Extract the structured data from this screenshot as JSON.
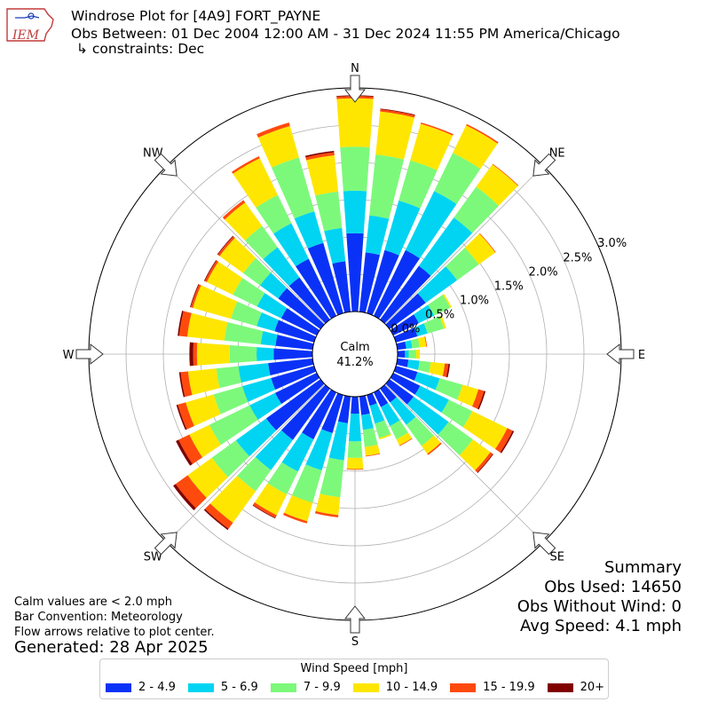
{
  "header": {
    "title": "Windrose Plot for [4A9] FORT_PAYNE",
    "obs_between": "Obs Between: 01 Dec 2004 12:00 AM - 31 Dec 2024 11:55 PM America/Chicago",
    "constraints": "↳ constraints: Dec",
    "logo_text": "IEM"
  },
  "notes": {
    "calm_def": "Calm values are < 2.0 mph",
    "bar_convention": "Bar Convention: Meteorology",
    "flow_arrows": "Flow arrows relative to plot center.",
    "generated": "Generated: 28 Apr 2025"
  },
  "summary": {
    "heading": "Summary",
    "obs_used": "Obs Used: 14650",
    "obs_without_wind": "Obs Without Wind: 0",
    "avg_speed": "Avg Speed: 4.1 mph"
  },
  "legend": {
    "title": "Wind Speed [mph]",
    "position": "bottom-center"
  },
  "chart_data": {
    "type": "windrose",
    "title": "Windrose Plot for [4A9] FORT_PAYNE",
    "calm_label": "Calm",
    "calm_percent": "41.2%",
    "r_max_percent": 3.0,
    "r_tick_values": [
      0,
      0.5,
      1,
      1.5,
      2,
      2.5,
      3
    ],
    "r_tick_labels": [
      "0.0%",
      "0.5%",
      "1.0%",
      "1.5%",
      "2.0%",
      "2.5%",
      "3.0%"
    ],
    "compass_labels": [
      {
        "label": "N",
        "deg": 0
      },
      {
        "label": "NE",
        "deg": 45
      },
      {
        "label": "E",
        "deg": 90
      },
      {
        "label": "SE",
        "deg": 135
      },
      {
        "label": "S",
        "deg": 180
      },
      {
        "label": "SW",
        "deg": 225
      },
      {
        "label": "W",
        "deg": 270
      },
      {
        "label": "NW",
        "deg": 315
      }
    ],
    "speed_bins": [
      {
        "name": "2 - 4.9",
        "color": "#0a32f7"
      },
      {
        "name": "5 - 6.9",
        "color": "#00d4f2"
      },
      {
        "name": "7 - 9.9",
        "color": "#7cf97a"
      },
      {
        "name": "10 - 14.9",
        "color": "#ffe600"
      },
      {
        "name": "15 - 19.9",
        "color": "#ff4a0d"
      },
      {
        "name": "20+",
        "color": "#800000"
      }
    ],
    "sector_width_deg": 10,
    "directions_deg": [
      0,
      10,
      20,
      30,
      40,
      50,
      60,
      70,
      80,
      90,
      100,
      110,
      120,
      130,
      140,
      150,
      160,
      170,
      180,
      190,
      200,
      210,
      220,
      230,
      240,
      250,
      260,
      270,
      280,
      290,
      300,
      310,
      320,
      330,
      340,
      350
    ],
    "cumulative_percent": [
      [
        1.05,
        1.62,
        2.21,
        2.86,
        2.89,
        2.9
      ],
      [
        0.8,
        1.3,
        2.12,
        2.7,
        2.73,
        2.74
      ],
      [
        0.88,
        1.57,
        2.13,
        2.64,
        2.66,
        2.66
      ],
      [
        0.98,
        1.86,
        2.43,
        2.84,
        2.86,
        2.86
      ],
      [
        0.89,
        1.69,
        2.2,
        2.57,
        2.58,
        2.58
      ],
      [
        0.6,
        1.12,
        1.48,
        1.75,
        1.76,
        1.76
      ],
      [
        0.38,
        0.61,
        0.85,
        0.87,
        0.87,
        0.87
      ],
      [
        0.3,
        0.44,
        0.67,
        0.7,
        0.7,
        0.7
      ],
      [
        0.12,
        0.2,
        0.3,
        0.39,
        0.4,
        0.4
      ],
      [
        0.1,
        0.15,
        0.25,
        0.3,
        0.3,
        0.3
      ],
      [
        0.15,
        0.3,
        0.45,
        0.64,
        0.69,
        0.71
      ],
      [
        0.3,
        0.61,
        0.93,
        1.15,
        1.23,
        1.25
      ],
      [
        0.4,
        0.83,
        1.18,
        1.7,
        1.78,
        1.8
      ],
      [
        0.4,
        0.98,
        1.38,
        1.67,
        1.71,
        1.72
      ],
      [
        0.23,
        0.6,
        0.95,
        1.08,
        1.1,
        1.1
      ],
      [
        0.22,
        0.5,
        0.7,
        0.79,
        0.8,
        0.8
      ],
      [
        0.15,
        0.4,
        0.6,
        0.62,
        0.62,
        0.62
      ],
      [
        0.25,
        0.45,
        0.68,
        0.8,
        0.81,
        0.81
      ],
      [
        0.23,
        0.6,
        0.82,
        0.97,
        0.98,
        0.98
      ],
      [
        0.36,
        0.86,
        1.36,
        1.6,
        1.63,
        1.63
      ],
      [
        0.53,
        1.05,
        1.5,
        1.76,
        1.79,
        1.79
      ],
      [
        0.7,
        1.18,
        1.52,
        1.83,
        1.87,
        1.88
      ],
      [
        0.85,
        1.35,
        1.7,
        2.22,
        2.32,
        2.34
      ],
      [
        0.9,
        1.4,
        1.8,
        2.2,
        2.4,
        2.44
      ],
      [
        0.62,
        1.0,
        1.6,
        1.9,
        2.06,
        2.1
      ],
      [
        0.6,
        1.0,
        1.4,
        1.79,
        1.9,
        1.92
      ],
      [
        0.6,
        1.0,
        1.3,
        1.68,
        1.78,
        1.8
      ],
      [
        0.52,
        0.75,
        1.11,
        1.55,
        1.6,
        1.65
      ],
      [
        0.5,
        0.7,
        1.19,
        1.69,
        1.8,
        1.82
      ],
      [
        0.55,
        0.8,
        1.16,
        1.69,
        1.72,
        1.73
      ],
      [
        0.53,
        0.89,
        1.25,
        1.64,
        1.67,
        1.68
      ],
      [
        0.7,
        1.0,
        1.28,
        1.67,
        1.7,
        1.71
      ],
      [
        0.7,
        1.2,
        1.55,
        1.94,
        1.98,
        1.98
      ],
      [
        0.85,
        1.38,
        1.8,
        2.35,
        2.38,
        2.38
      ],
      [
        0.98,
        1.42,
        2.17,
        2.61,
        2.66,
        2.66
      ],
      [
        0.68,
        1.13,
        1.62,
        2.11,
        2.15,
        2.17
      ]
    ]
  }
}
